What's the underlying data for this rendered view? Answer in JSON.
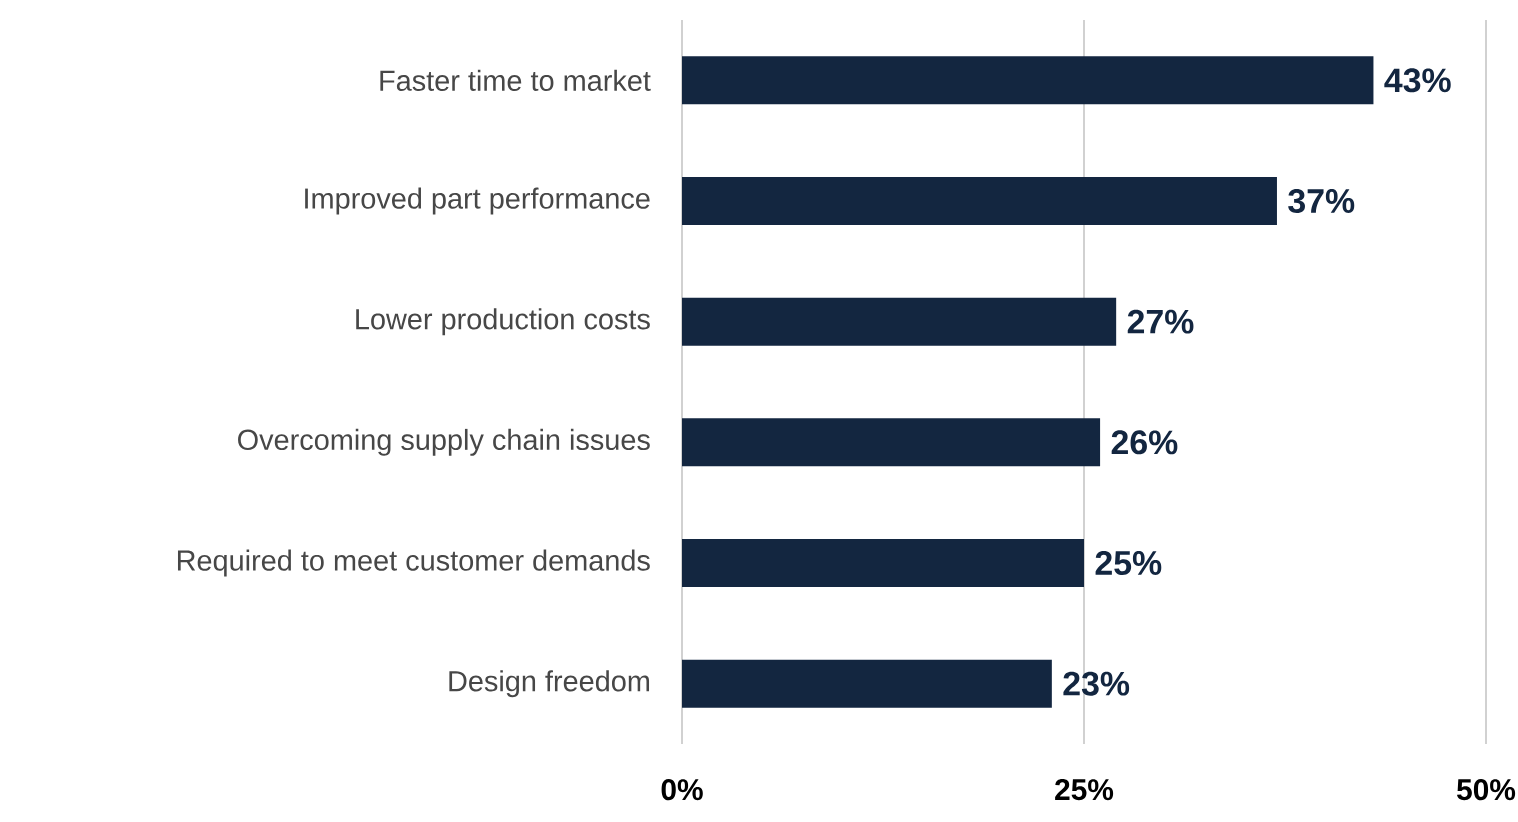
{
  "chart_data": {
    "type": "bar",
    "orientation": "horizontal",
    "categories": [
      "Faster time to market",
      "Improved part performance",
      "Lower production costs",
      "Overcoming supply chain issues",
      "Required to meet customer demands",
      "Design freedom"
    ],
    "values": [
      43,
      37,
      27,
      26,
      25,
      23
    ],
    "value_labels": [
      "43%",
      "37%",
      "27%",
      "26%",
      "25%",
      "23%"
    ],
    "color": "#132640",
    "xlim": [
      0,
      50
    ],
    "xticks": [
      {
        "value": 0,
        "label": "0%"
      },
      {
        "value": 25,
        "label": "25%"
      },
      {
        "value": 50,
        "label": "50%"
      }
    ],
    "grid": "x"
  }
}
